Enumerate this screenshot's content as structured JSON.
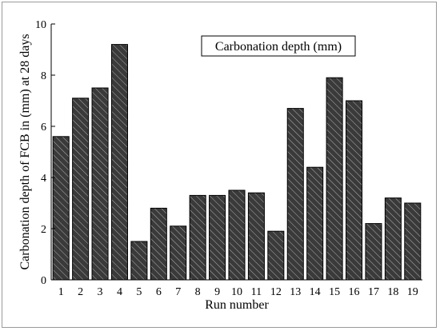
{
  "chart_data": {
    "type": "bar",
    "categories": [
      "1",
      "2",
      "3",
      "4",
      "5",
      "6",
      "7",
      "8",
      "9",
      "10",
      "11",
      "12",
      "13",
      "14",
      "15",
      "16",
      "17",
      "18",
      "19"
    ],
    "series": [
      {
        "name": "Carbonation depth (mm)",
        "values": [
          5.6,
          7.1,
          7.5,
          9.2,
          1.5,
          2.8,
          2.1,
          3.3,
          3.3,
          3.5,
          3.4,
          1.9,
          6.7,
          4.4,
          7.9,
          7.0,
          2.2,
          3.2,
          3.0
        ]
      }
    ],
    "xlabel": "Run number",
    "ylabel": "Carbonation depth of FCB in (mm)  at 28 days",
    "ylim": [
      0,
      10
    ],
    "yticks": [
      "0",
      "2",
      "4",
      "6",
      "8",
      "10"
    ],
    "grid": false,
    "legend_position": "top-right",
    "colors": {
      "bar_fill": "#3a3a3a",
      "hatch": "#b0b0b0"
    }
  }
}
